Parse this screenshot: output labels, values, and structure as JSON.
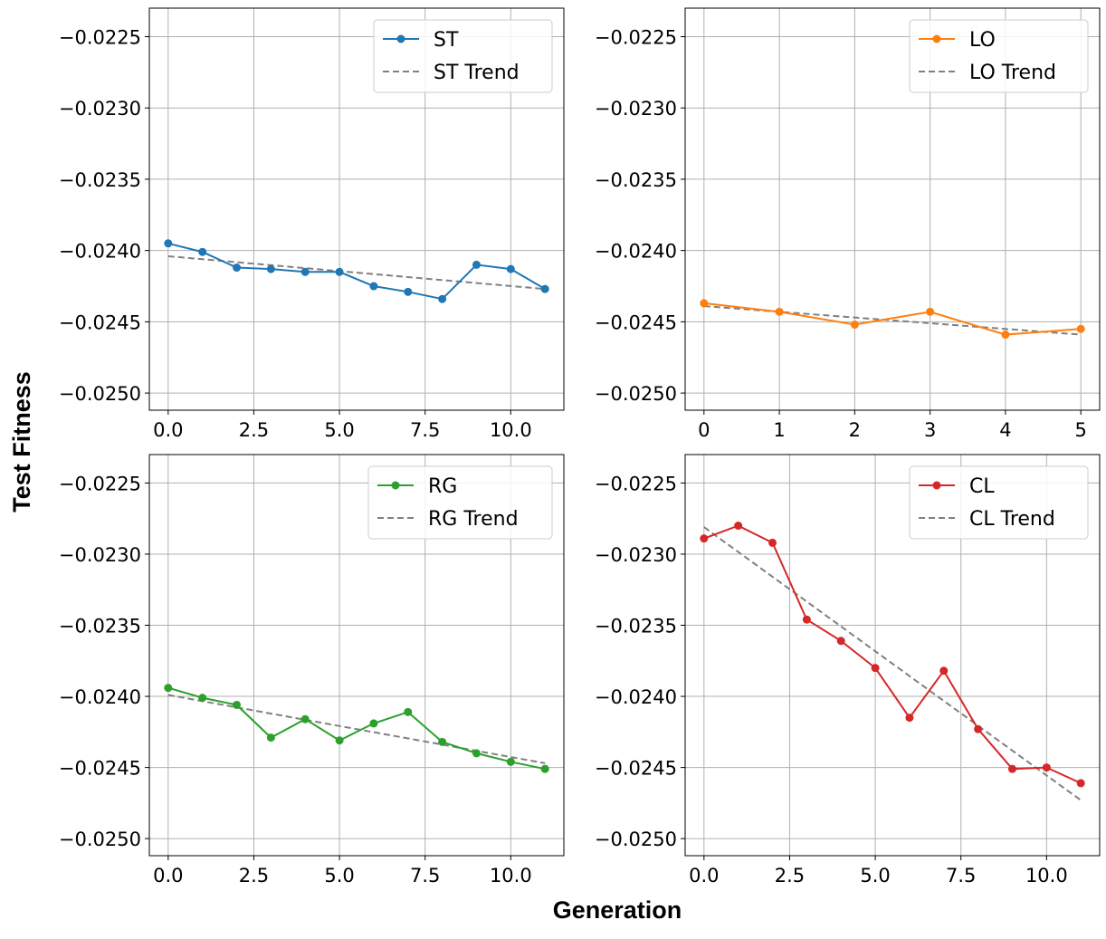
{
  "chart_data": {
    "type": "line",
    "xlabel": "Generation",
    "ylabel": "Test Fitness",
    "ylim": [
      -0.02512,
      -0.0223
    ],
    "yticks": [
      -0.0225,
      -0.023,
      -0.0235,
      -0.024,
      -0.0245,
      -0.025
    ],
    "ytick_labels": [
      "−0.0225",
      "−0.0230",
      "−0.0235",
      "−0.0240",
      "−0.0245",
      "−0.0250"
    ],
    "grid": true,
    "panels": [
      {
        "name": "ST",
        "color": "#1f77b4",
        "legend": [
          "ST",
          "ST Trend"
        ],
        "legend_placement": "upper-right",
        "x": [
          0,
          1,
          2,
          3,
          4,
          5,
          6,
          7,
          8,
          9,
          10,
          11
        ],
        "y": [
          -0.02395,
          -0.02401,
          -0.02412,
          -0.02413,
          -0.02415,
          -0.02415,
          -0.02425,
          -0.02429,
          -0.02434,
          -0.0241,
          -0.02413,
          -0.02427
        ],
        "trend": [
          -0.02404,
          -0.02427
        ],
        "xlim": [
          -0.55,
          11.55
        ],
        "xticks": [
          0,
          2.5,
          5,
          7.5,
          10
        ],
        "xtick_labels": [
          "0.0",
          "2.5",
          "5.0",
          "7.5",
          "10.0"
        ]
      },
      {
        "name": "LO",
        "color": "#ff7f0e",
        "legend": [
          "LO",
          "LO Trend"
        ],
        "legend_placement": "upper-right",
        "x": [
          0,
          1,
          2,
          3,
          4,
          5
        ],
        "y": [
          -0.02437,
          -0.02443,
          -0.02452,
          -0.02443,
          -0.02459,
          -0.02455
        ],
        "trend": [
          -0.02439,
          -0.02459
        ],
        "xlim": [
          -0.25,
          5.25
        ],
        "xticks": [
          0,
          1,
          2,
          3,
          4,
          5
        ],
        "xtick_labels": [
          "0",
          "1",
          "2",
          "3",
          "4",
          "5"
        ]
      },
      {
        "name": "RG",
        "color": "#2ca02c",
        "legend": [
          "RG",
          "RG Trend"
        ],
        "legend_placement": "upper-right",
        "x": [
          0,
          1,
          2,
          3,
          4,
          5,
          6,
          7,
          8,
          9,
          10,
          11
        ],
        "y": [
          -0.02394,
          -0.02401,
          -0.02406,
          -0.02429,
          -0.02416,
          -0.02431,
          -0.02419,
          -0.02411,
          -0.02432,
          -0.0244,
          -0.02446,
          -0.02451
        ],
        "trend": [
          -0.02399,
          -0.02447
        ],
        "xlim": [
          -0.55,
          11.55
        ],
        "xticks": [
          0,
          2.5,
          5,
          7.5,
          10
        ],
        "xtick_labels": [
          "0.0",
          "2.5",
          "5.0",
          "7.5",
          "10.0"
        ]
      },
      {
        "name": "CL",
        "color": "#d62728",
        "legend": [
          "CL",
          "CL Trend"
        ],
        "legend_placement": "upper-right",
        "x": [
          0,
          1,
          2,
          3,
          4,
          5,
          6,
          7,
          8,
          9,
          10,
          11
        ],
        "y": [
          -0.02289,
          -0.0228,
          -0.02292,
          -0.02346,
          -0.02361,
          -0.0238,
          -0.02415,
          -0.02382,
          -0.02423,
          -0.02451,
          -0.0245,
          -0.02461
        ],
        "trend": [
          -0.02281,
          -0.02473
        ],
        "xlim": [
          -0.55,
          11.55
        ],
        "xticks": [
          0,
          2.5,
          5,
          7.5,
          10
        ],
        "xtick_labels": [
          "0.0",
          "2.5",
          "5.0",
          "7.5",
          "10.0"
        ]
      }
    ]
  }
}
